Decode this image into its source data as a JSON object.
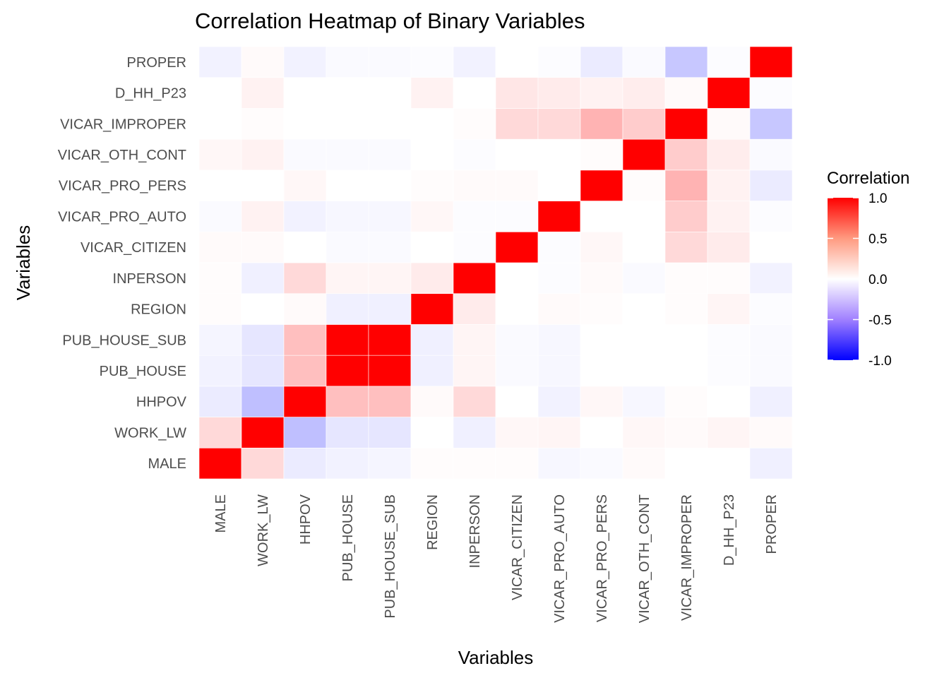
{
  "chart_data": {
    "type": "heatmap",
    "title": "Correlation Heatmap of Binary Variables",
    "xlabel": "Variables",
    "ylabel": "Variables",
    "variables": [
      "MALE",
      "WORK_LW",
      "HHPOV",
      "PUB_HOUSE",
      "PUB_HOUSE_SUB",
      "REGION",
      "INPERSON",
      "VICAR_CITIZEN",
      "VICAR_PRO_AUTO",
      "VICAR_PRO_PERS",
      "VICAR_OTH_CONT",
      "VICAR_IMPROPER",
      "D_HH_P23",
      "PROPER"
    ],
    "values": [
      [
        1.0,
        0.15,
        -0.08,
        -0.05,
        -0.04,
        0.01,
        0.01,
        0.01,
        -0.03,
        -0.02,
        0.02,
        0.0,
        0.0,
        -0.06
      ],
      [
        0.15,
        1.0,
        -0.25,
        -0.1,
        -0.1,
        0.0,
        -0.06,
        0.03,
        0.04,
        0.0,
        0.03,
        0.02,
        0.04,
        0.02
      ],
      [
        -0.08,
        -0.25,
        1.0,
        0.25,
        0.25,
        0.02,
        0.15,
        0.0,
        -0.05,
        0.03,
        -0.03,
        0.01,
        0.0,
        -0.06
      ],
      [
        -0.05,
        -0.1,
        0.25,
        1.0,
        1.0,
        -0.06,
        0.04,
        -0.02,
        -0.03,
        0.0,
        0.0,
        0.0,
        -0.01,
        -0.02
      ],
      [
        -0.04,
        -0.1,
        0.25,
        1.0,
        1.0,
        -0.06,
        0.04,
        -0.02,
        -0.03,
        0.0,
        0.0,
        0.0,
        -0.01,
        -0.02
      ],
      [
        0.01,
        0.0,
        0.02,
        -0.06,
        -0.06,
        1.0,
        0.08,
        0.0,
        0.02,
        0.01,
        0.0,
        0.01,
        0.04,
        -0.01
      ],
      [
        0.01,
        -0.06,
        0.15,
        0.04,
        0.04,
        0.08,
        1.0,
        0.0,
        -0.01,
        0.02,
        -0.02,
        0.01,
        0.01,
        -0.05
      ],
      [
        0.02,
        0.02,
        0.0,
        -0.02,
        -0.02,
        0.0,
        -0.01,
        1.0,
        -0.01,
        0.03,
        0.0,
        0.15,
        0.08,
        0.0
      ],
      [
        -0.02,
        0.05,
        -0.05,
        -0.03,
        -0.03,
        0.03,
        -0.01,
        -0.01,
        1.0,
        0.0,
        0.0,
        0.2,
        0.05,
        -0.01
      ],
      [
        0.0,
        0.0,
        0.03,
        0.0,
        0.0,
        0.01,
        0.02,
        0.02,
        0.0,
        1.0,
        0.01,
        0.3,
        0.05,
        -0.08
      ],
      [
        0.03,
        0.05,
        -0.02,
        -0.02,
        -0.02,
        0.0,
        -0.01,
        0.0,
        0.0,
        0.01,
        1.0,
        0.2,
        0.07,
        -0.02
      ],
      [
        0.0,
        0.01,
        0.0,
        0.0,
        0.0,
        0.0,
        0.01,
        0.15,
        0.15,
        0.3,
        0.2,
        1.0,
        0.02,
        -0.22
      ],
      [
        0.0,
        0.05,
        0.0,
        0.0,
        0.0,
        0.05,
        0.0,
        0.1,
        0.08,
        0.05,
        0.07,
        0.02,
        1.0,
        -0.01
      ],
      [
        -0.05,
        0.02,
        -0.05,
        -0.02,
        -0.02,
        -0.01,
        -0.05,
        0.0,
        -0.01,
        -0.08,
        -0.02,
        -0.22,
        -0.01,
        1.0
      ]
    ],
    "color_scale": {
      "min": -1.0,
      "max": 1.0,
      "low_color": "#0000FF",
      "mid_color": "#FFFFFF",
      "high_color": "#FF0000"
    },
    "legend": {
      "title": "Correlation",
      "ticks": [
        "1.0",
        "0.5",
        "0.0",
        "-0.5",
        "-1.0"
      ],
      "tick_values": [
        1.0,
        0.5,
        0.0,
        -0.5,
        -1.0
      ],
      "placement": "right"
    },
    "grid": true
  }
}
